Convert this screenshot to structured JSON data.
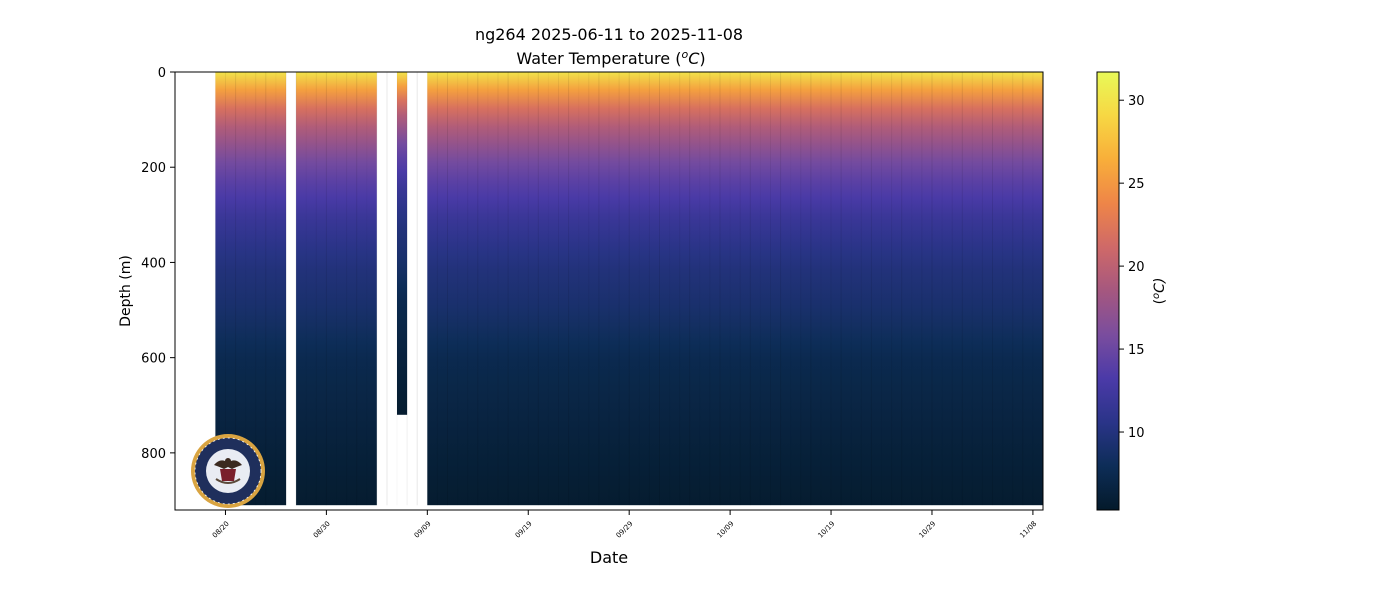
{
  "chart_data": {
    "type": "heatmap",
    "title": "ng264 2025-06-11 to 2025-11-08",
    "subtitle": "Water Temperature (",
    "subtitle_unit_italic": "o",
    "subtitle_unit_tail": "C",
    "subtitle_close": ")",
    "xlabel": "Date",
    "ylabel": "Depth (m)",
    "x_tick_labels": [
      "08/20",
      "08/30",
      "09/09",
      "09/19",
      "09/29",
      "10/09",
      "10/19",
      "10/29",
      "11/08"
    ],
    "x_tick_dates": [
      "2025-08-20",
      "2025-08-30",
      "2025-09-09",
      "2025-09-19",
      "2025-09-29",
      "2025-10-09",
      "2025-10-19",
      "2025-10-29",
      "2025-11-08"
    ],
    "xlim": [
      "2025-08-15",
      "2025-11-09"
    ],
    "ylim": [
      920,
      0
    ],
    "y_ticks": [
      0,
      200,
      400,
      600,
      800
    ],
    "y_inverted": true,
    "data_date_range": [
      "2025-08-19",
      "2025-11-08"
    ],
    "max_depth_m": 910,
    "data_gaps": [
      {
        "start": "2025-08-26",
        "end": "2025-08-26"
      },
      {
        "start": "2025-09-04",
        "end": "2025-09-05"
      },
      {
        "start": "2025-09-07",
        "end": "2025-09-08"
      }
    ],
    "shallow_profile_segment": {
      "start": "2025-09-05",
      "end": "2025-09-06",
      "max_depth_m": 720
    },
    "temperature_profile": [
      {
        "depth_m": 0,
        "temp_c": 30
      },
      {
        "depth_m": 50,
        "temp_c": 24
      },
      {
        "depth_m": 100,
        "temp_c": 20
      },
      {
        "depth_m": 200,
        "temp_c": 15
      },
      {
        "depth_m": 300,
        "temp_c": 12
      },
      {
        "depth_m": 400,
        "temp_c": 10
      },
      {
        "depth_m": 500,
        "temp_c": 9
      },
      {
        "depth_m": 600,
        "temp_c": 7.5
      },
      {
        "depth_m": 700,
        "temp_c": 6.8
      },
      {
        "depth_m": 800,
        "temp_c": 6.2
      },
      {
        "depth_m": 910,
        "temp_c": 5.6
      }
    ],
    "colorbar": {
      "label": "(",
      "label_italic": "o",
      "label_tail": "C)",
      "range": [
        5.3,
        31.7
      ],
      "ticks": [
        10,
        15,
        20,
        25,
        30
      ],
      "colormap": "thermal"
    },
    "logo": "us-navy-seal"
  },
  "colors": {
    "cmap_stops": [
      "#041a2b",
      "#0d2d57",
      "#2a3488",
      "#4b3aa8",
      "#7a4d9e",
      "#a5577f",
      "#cf6968",
      "#ee8548",
      "#f8ae3a",
      "#f7d743",
      "#e8f958"
    ],
    "gap_color": "#ffffff",
    "axis_color": "#000000"
  }
}
